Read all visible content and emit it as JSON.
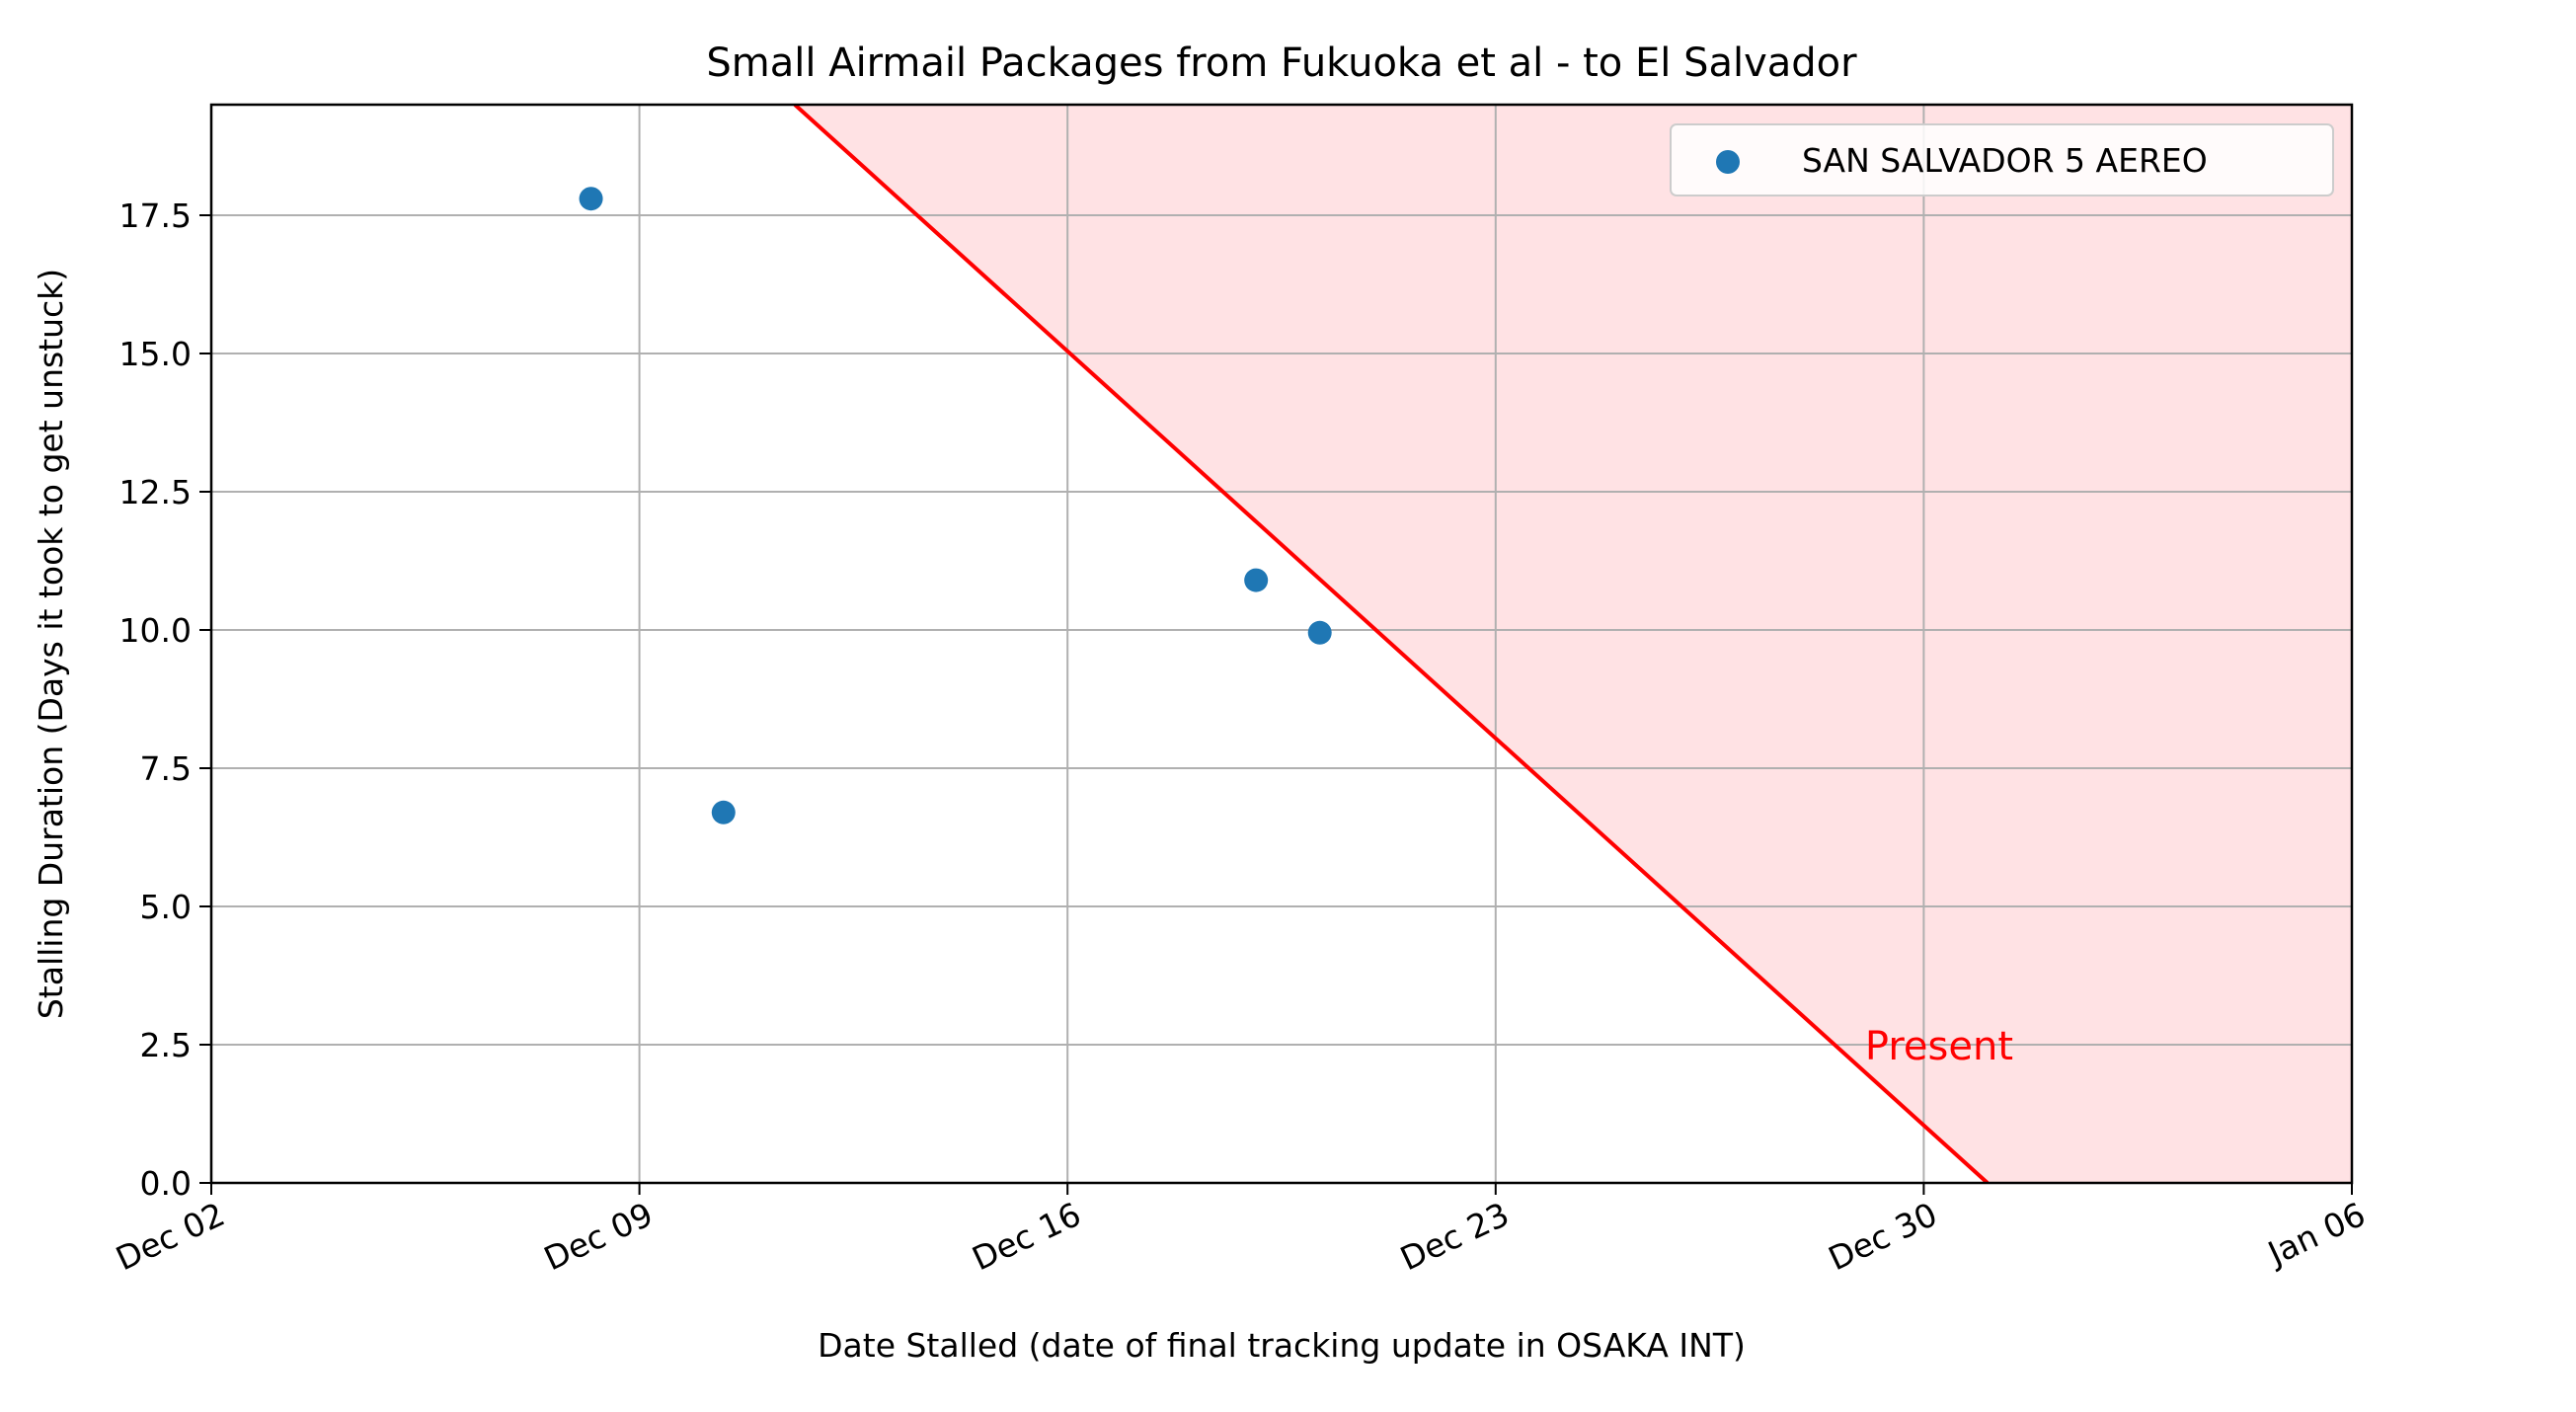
{
  "chart_data": {
    "type": "scatter",
    "title": "Small Airmail Packages from Fukuoka et al - to El Salvador",
    "xlabel": "Date Stalled (date of final tracking update in OSAKA INT)",
    "ylabel": "Stalling Duration (Days it took to get unstuck)",
    "x_axis": {
      "type": "date",
      "range": [
        "2024-12-02",
        "2025-01-06"
      ],
      "ticks": [
        {
          "date": "2024-12-02",
          "label": "Dec 02"
        },
        {
          "date": "2024-12-09",
          "label": "Dec 09"
        },
        {
          "date": "2024-12-16",
          "label": "Dec 16"
        },
        {
          "date": "2024-12-23",
          "label": "Dec 23"
        },
        {
          "date": "2024-12-30",
          "label": "Dec 30"
        },
        {
          "date": "2025-01-06",
          "label": "Jan 06"
        }
      ]
    },
    "y_axis": {
      "range": [
        0,
        19.5
      ],
      "ticks": [
        "0.0",
        "2.5",
        "5.0",
        "7.5",
        "10.0",
        "12.5",
        "15.0",
        "17.5"
      ]
    },
    "grid": true,
    "legend_position": "top-right",
    "series": [
      {
        "name": "SAN SALVADOR 5 AEREO",
        "color": "#1f77b4",
        "points": [
          {
            "x": "2024-12-08 05:00",
            "y": 17.8
          },
          {
            "x": "2024-12-10 09:00",
            "y": 6.7
          },
          {
            "x": "2024-12-19 02:00",
            "y": 10.9
          },
          {
            "x": "2024-12-20 03:00",
            "y": 9.95
          }
        ]
      }
    ],
    "present_line": {
      "label": "Present",
      "color": "#ff0000",
      "shade_color": "#ffe2e4",
      "x_at_zero": "2024-12-31 01:00"
    }
  }
}
